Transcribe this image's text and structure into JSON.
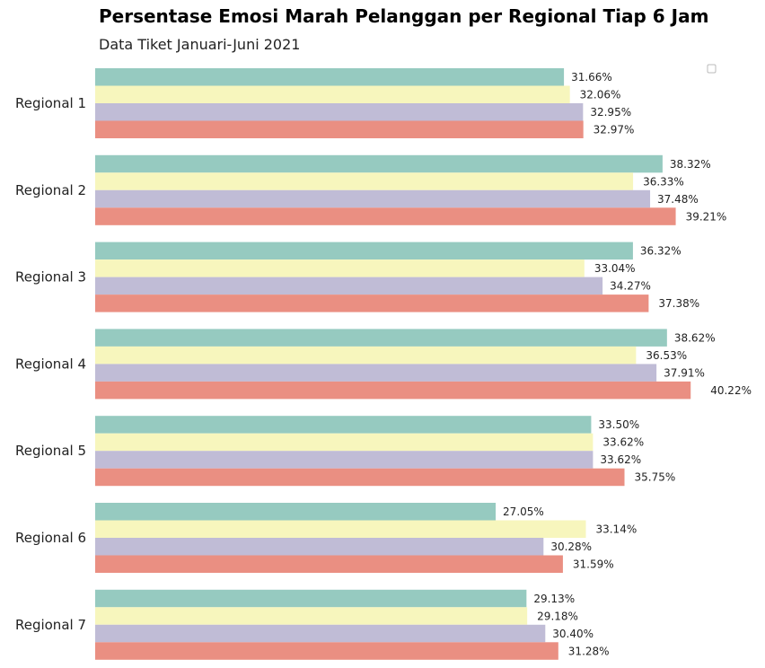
{
  "chart_data": {
    "type": "bar",
    "orientation": "horizontal",
    "title": "Persentase Emosi Marah Pelanggan per Regional Tiap 6 Jam",
    "subtitle": "Data Tiket Januari-Juni 2021",
    "categories": [
      "Regional 1",
      "Regional 2",
      "Regional 3",
      "Regional 4",
      "Regional 5",
      "Regional 6",
      "Regional 7"
    ],
    "series": [
      {
        "color": "#96cac0",
        "values": [
          31.66,
          38.32,
          36.32,
          38.62,
          33.5,
          27.05,
          29.13
        ],
        "labels": [
          "31.66%",
          "38.32%",
          "36.32%",
          "38.62%",
          "33.50%",
          "27.05%",
          "29.13%"
        ]
      },
      {
        "color": "#f7f6bd",
        "values": [
          32.06,
          36.33,
          33.04,
          36.53,
          33.62,
          33.14,
          29.18
        ],
        "labels": [
          "32.06%",
          "36.33%",
          "33.04%",
          "36.53%",
          "33.62%",
          "33.14%",
          "29.18%"
        ]
      },
      {
        "color": "#c0bcd6",
        "values": [
          32.95,
          37.48,
          34.27,
          37.91,
          33.62,
          30.28,
          30.4
        ],
        "labels": [
          "32.95%",
          "37.48%",
          "34.27%",
          "37.91%",
          "33.62%",
          "30.28%",
          "30.40%"
        ]
      },
      {
        "color": "#ea8f82",
        "values": [
          32.97,
          39.21,
          37.38,
          40.22,
          35.75,
          31.59,
          31.28
        ],
        "labels": [
          "32.97%",
          "39.21%",
          "37.38%",
          "40.22%",
          "35.75%",
          "31.59%",
          "31.28%"
        ]
      }
    ],
    "xlim": [
      0,
      41.5
    ],
    "grid": false,
    "legend": "top-right (empty)"
  }
}
